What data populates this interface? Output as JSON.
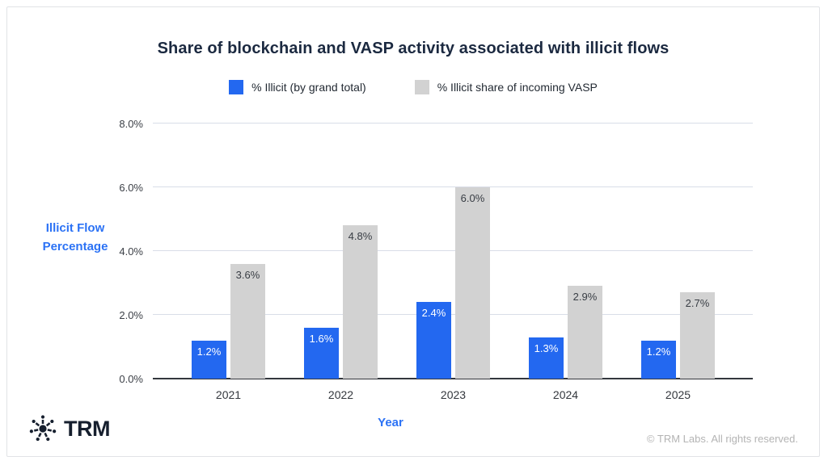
{
  "card": {
    "title": "Share of blockchain and VASP activity associated with illicit flows",
    "footer": {
      "logo_text": "TRM",
      "copyright": "© TRM Labs. All rights reserved."
    }
  },
  "colors": {
    "bar_blue": "#2368f0",
    "bar_gray": "#d2d2d2",
    "axis_label_blue": "#2b72f5",
    "title_navy": "#1b2940",
    "gridline": "#d9dde8",
    "copyright_gray": "#b4b4b4"
  },
  "chart_data": {
    "type": "bar",
    "title": "Share of blockchain and VASP activity associated with illicit flows",
    "categories": [
      "2021",
      "2022",
      "2023",
      "2024",
      "2025"
    ],
    "series": [
      {
        "name": "% Illicit (by grand total)",
        "color": "#2368f0",
        "label_color": "#ffffff",
        "values": [
          1.2,
          1.6,
          2.4,
          1.3,
          1.2
        ],
        "labels": [
          "1.2%",
          "1.6%",
          "2.4%",
          "1.3%",
          "1.2%"
        ]
      },
      {
        "name": "% Illicit share of incoming VASP",
        "color": "#d2d2d2",
        "label_color": "#383d44",
        "values": [
          3.6,
          4.8,
          6.0,
          2.9,
          2.7
        ],
        "labels": [
          "3.6%",
          "4.8%",
          "6.0%",
          "2.9%",
          "2.7%"
        ]
      }
    ],
    "xlabel": "Year",
    "ylabel": "Illicit Flow Percentage",
    "ylim": [
      0,
      8
    ],
    "yticks": [
      {
        "value": 0,
        "label": "0.0%"
      },
      {
        "value": 2,
        "label": "2.0%"
      },
      {
        "value": 4,
        "label": "4.0%"
      },
      {
        "value": 6,
        "label": "6.0%"
      },
      {
        "value": 8,
        "label": "8.0%"
      }
    ],
    "grid": true,
    "legend_position": "top"
  }
}
